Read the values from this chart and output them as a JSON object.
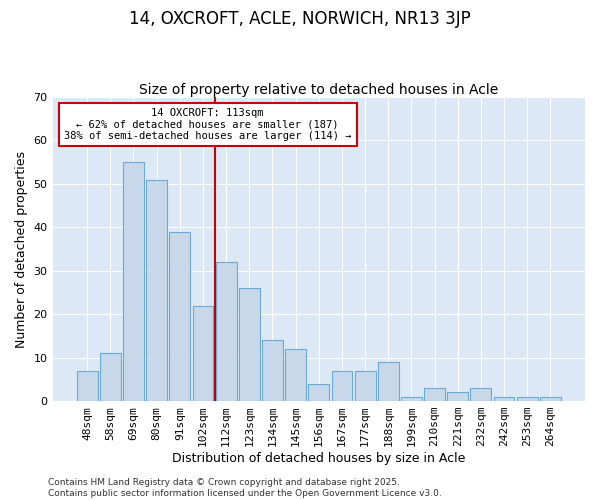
{
  "title": "14, OXCROFT, ACLE, NORWICH, NR13 3JP",
  "subtitle": "Size of property relative to detached houses in Acle",
  "xlabel": "Distribution of detached houses by size in Acle",
  "ylabel": "Number of detached properties",
  "categories": [
    "48sqm",
    "58sqm",
    "69sqm",
    "80sqm",
    "91sqm",
    "102sqm",
    "112sqm",
    "123sqm",
    "134sqm",
    "145sqm",
    "156sqm",
    "167sqm",
    "177sqm",
    "188sqm",
    "199sqm",
    "210sqm",
    "221sqm",
    "232sqm",
    "242sqm",
    "253sqm",
    "264sqm"
  ],
  "values": [
    7,
    11,
    55,
    51,
    39,
    22,
    32,
    26,
    14,
    12,
    4,
    7,
    7,
    9,
    1,
    3,
    2,
    3,
    1,
    1,
    1
  ],
  "bar_color": "#c8d8ea",
  "bar_edge_color": "#6aaad4",
  "ylim": [
    0,
    70
  ],
  "yticks": [
    0,
    10,
    20,
    30,
    40,
    50,
    60,
    70
  ],
  "annotation_text": "14 OXCROFT: 113sqm\n← 62% of detached houses are smaller (187)\n38% of semi-detached houses are larger (114) →",
  "annotation_box_facecolor": "#ffffff",
  "annotation_box_edgecolor": "#cc0000",
  "vline_color": "#cc0000",
  "vline_x": 6,
  "footer": "Contains HM Land Registry data © Crown copyright and database right 2025.\nContains public sector information licensed under the Open Government Licence v3.0.",
  "figure_bg": "#ffffff",
  "axes_bg": "#dce8f5",
  "grid_color": "#ffffff",
  "title_fontsize": 12,
  "subtitle_fontsize": 10,
  "axis_label_fontsize": 9,
  "tick_fontsize": 8,
  "footer_fontsize": 6.5
}
